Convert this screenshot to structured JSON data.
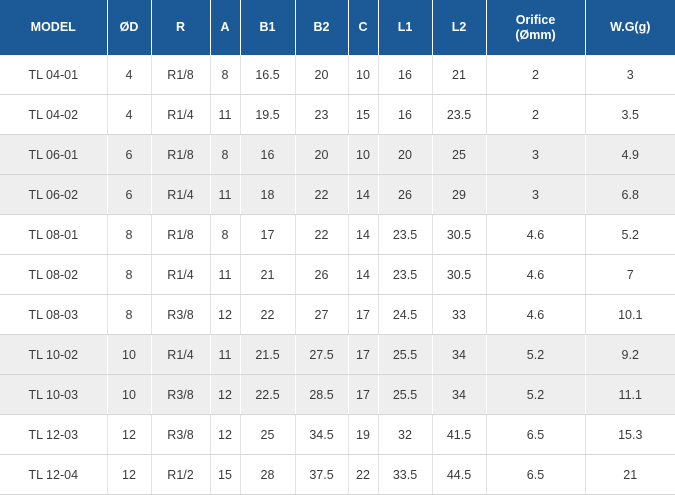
{
  "table": {
    "headers": [
      "MODEL",
      "ØD",
      "R",
      "A",
      "B1",
      "B2",
      "C",
      "L1",
      "L2",
      "Orifice\n(Ømm)",
      "W.G(g)"
    ],
    "header_color": "#1c5a97",
    "stripe_color": "#eeeeee",
    "rows": [
      [
        "TL 04-01",
        "4",
        "R1/8",
        "8",
        "16.5",
        "20",
        "10",
        "16",
        "21",
        "2",
        "3"
      ],
      [
        "TL 04-02",
        "4",
        "R1/4",
        "11",
        "19.5",
        "23",
        "15",
        "16",
        "23.5",
        "2",
        "3.5"
      ],
      [
        "TL 06-01",
        "6",
        "R1/8",
        "8",
        "16",
        "20",
        "10",
        "20",
        "25",
        "3",
        "4.9"
      ],
      [
        "TL 06-02",
        "6",
        "R1/4",
        "11",
        "18",
        "22",
        "14",
        "26",
        "29",
        "3",
        "6.8"
      ],
      [
        "TL 08-01",
        "8",
        "R1/8",
        "8",
        "17",
        "22",
        "14",
        "23.5",
        "30.5",
        "4.6",
        "5.2"
      ],
      [
        "TL 08-02",
        "8",
        "R1/4",
        "11",
        "21",
        "26",
        "14",
        "23.5",
        "30.5",
        "4.6",
        "7"
      ],
      [
        "TL 08-03",
        "8",
        "R3/8",
        "12",
        "22",
        "27",
        "17",
        "24.5",
        "33",
        "4.6",
        "10.1"
      ],
      [
        "TL 10-02",
        "10",
        "R1/4",
        "11",
        "21.5",
        "27.5",
        "17",
        "25.5",
        "34",
        "5.2",
        "9.2"
      ],
      [
        "TL 10-03",
        "10",
        "R3/8",
        "12",
        "22.5",
        "28.5",
        "17",
        "25.5",
        "34",
        "5.2",
        "11.1"
      ],
      [
        "TL 12-03",
        "12",
        "R3/8",
        "12",
        "25",
        "34.5",
        "19",
        "32",
        "41.5",
        "6.5",
        "15.3"
      ],
      [
        "TL 12-04",
        "12",
        "R1/2",
        "15",
        "28",
        "37.5",
        "22",
        "33.5",
        "44.5",
        "6.5",
        "21"
      ]
    ]
  }
}
